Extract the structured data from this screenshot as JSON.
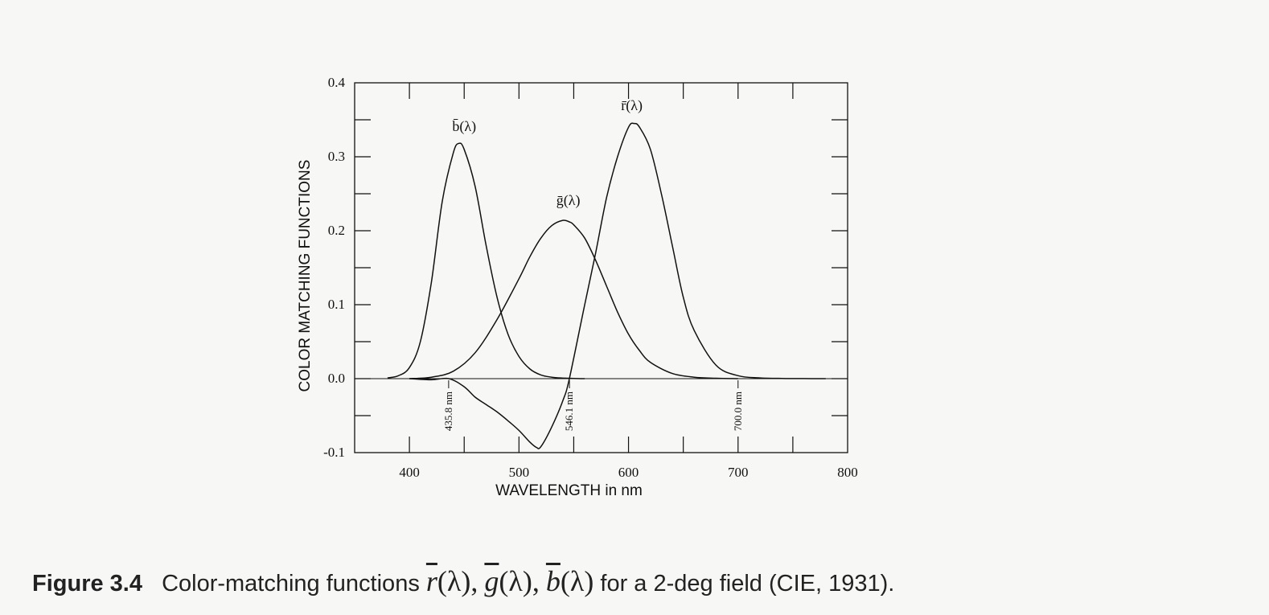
{
  "chart_data": {
    "type": "line",
    "xlabel": "WAVELENGTH in nm",
    "ylabel": "COLOR MATCHING FUNCTIONS",
    "xlim": [
      350,
      800
    ],
    "ylim": [
      -0.1,
      0.4
    ],
    "x_ticks": [
      400,
      500,
      600,
      700,
      800
    ],
    "y_ticks": [
      -0.1,
      0.0,
      0.1,
      0.2,
      0.3,
      0.4
    ],
    "y_tick_labels": [
      "-0.1",
      "0.0",
      "0.1",
      "0.2",
      "0.3",
      "0.4"
    ],
    "grid": false,
    "zero_line": true,
    "series": [
      {
        "name": "b̄(λ)",
        "x": [
          380,
          390,
          400,
          410,
          420,
          430,
          440,
          445,
          450,
          460,
          470,
          480,
          490,
          500,
          510,
          520,
          530,
          540,
          550,
          560
        ],
        "y": [
          0.001,
          0.004,
          0.015,
          0.05,
          0.13,
          0.24,
          0.305,
          0.318,
          0.31,
          0.26,
          0.18,
          0.11,
          0.06,
          0.03,
          0.013,
          0.005,
          0.002,
          0.0008,
          0.0003,
          0.0
        ]
      },
      {
        "name": "ḡ(λ)",
        "x": [
          400,
          420,
          440,
          460,
          480,
          500,
          510,
          520,
          530,
          540,
          546,
          550,
          560,
          570,
          580,
          590,
          600,
          610,
          620,
          640,
          660,
          680,
          700
        ],
        "y": [
          0.0,
          0.002,
          0.01,
          0.035,
          0.08,
          0.135,
          0.165,
          0.19,
          0.207,
          0.214,
          0.212,
          0.208,
          0.19,
          0.16,
          0.125,
          0.09,
          0.06,
          0.038,
          0.022,
          0.007,
          0.002,
          0.0005,
          0.0
        ]
      },
      {
        "name": "r̄(λ)",
        "x": [
          400,
          420,
          436,
          450,
          460,
          470,
          480,
          490,
          500,
          510,
          516,
          520,
          530,
          540,
          546,
          560,
          570,
          580,
          590,
          600,
          605,
          610,
          620,
          630,
          640,
          650,
          660,
          680,
          700,
          720,
          740,
          760,
          780
        ],
        "y": [
          0.0,
          -0.0015,
          0.0,
          -0.011,
          -0.025,
          -0.035,
          -0.045,
          -0.057,
          -0.07,
          -0.086,
          -0.093,
          -0.092,
          -0.065,
          -0.03,
          0.0,
          0.1,
          0.17,
          0.245,
          0.3,
          0.34,
          0.345,
          0.34,
          0.31,
          0.25,
          0.18,
          0.11,
          0.065,
          0.018,
          0.004,
          0.001,
          0.0003,
          0.0001,
          0.0
        ]
      }
    ],
    "annotations": [
      {
        "text": "435.8 nm",
        "x": 435.8
      },
      {
        "text": "546.1 nm",
        "x": 546.1
      },
      {
        "text": "700.0 nm",
        "x": 700.0
      }
    ]
  },
  "caption": {
    "label": "Figure 3.4",
    "text_before": "Color-matching functions",
    "r_letter": "r",
    "g_letter": "g",
    "b_letter": "b",
    "lambda_part": "(λ)",
    "sep": ",",
    "text_after": "for a 2-deg field (CIE, 1931)."
  }
}
